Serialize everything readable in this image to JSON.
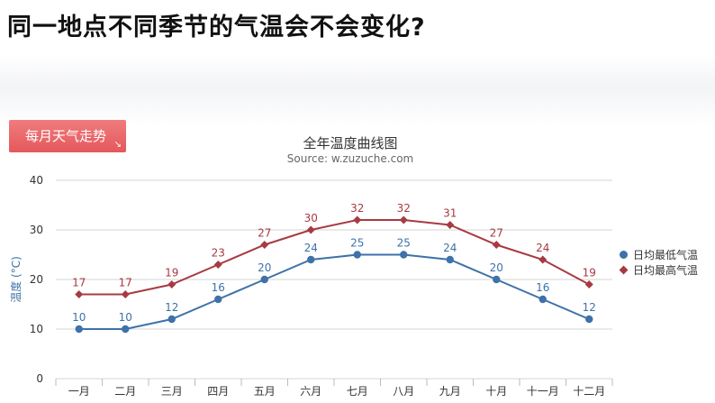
{
  "slide": {
    "title": "同一地点不同季节的气温会不会变化?",
    "badge": "每月天气走势",
    "badge_icon": "arrow-down-right-icon"
  },
  "chart_data": {
    "type": "line",
    "title": "全年温度曲线图",
    "subtitle": "Source: w.zuzuche.com",
    "xlabel": "",
    "ylabel": "温度 (°C)",
    "categories": [
      "一月",
      "二月",
      "三月",
      "四月",
      "五月",
      "六月",
      "七月",
      "八月",
      "九月",
      "十月",
      "十一月",
      "十二月"
    ],
    "ylim": [
      0,
      40
    ],
    "yticks": [
      0,
      10,
      20,
      30,
      40
    ],
    "grid": true,
    "legend": "right",
    "series": [
      {
        "name": "日均最低气温",
        "values": [
          10,
          10,
          12,
          16,
          20,
          24,
          25,
          25,
          24,
          20,
          16,
          12
        ],
        "color": "#3e72a8",
        "marker": "circle"
      },
      {
        "name": "日均最高气温",
        "values": [
          17,
          17,
          19,
          23,
          27,
          30,
          32,
          32,
          31,
          27,
          24,
          19
        ],
        "color": "#a83a42",
        "marker": "diamond"
      }
    ]
  }
}
